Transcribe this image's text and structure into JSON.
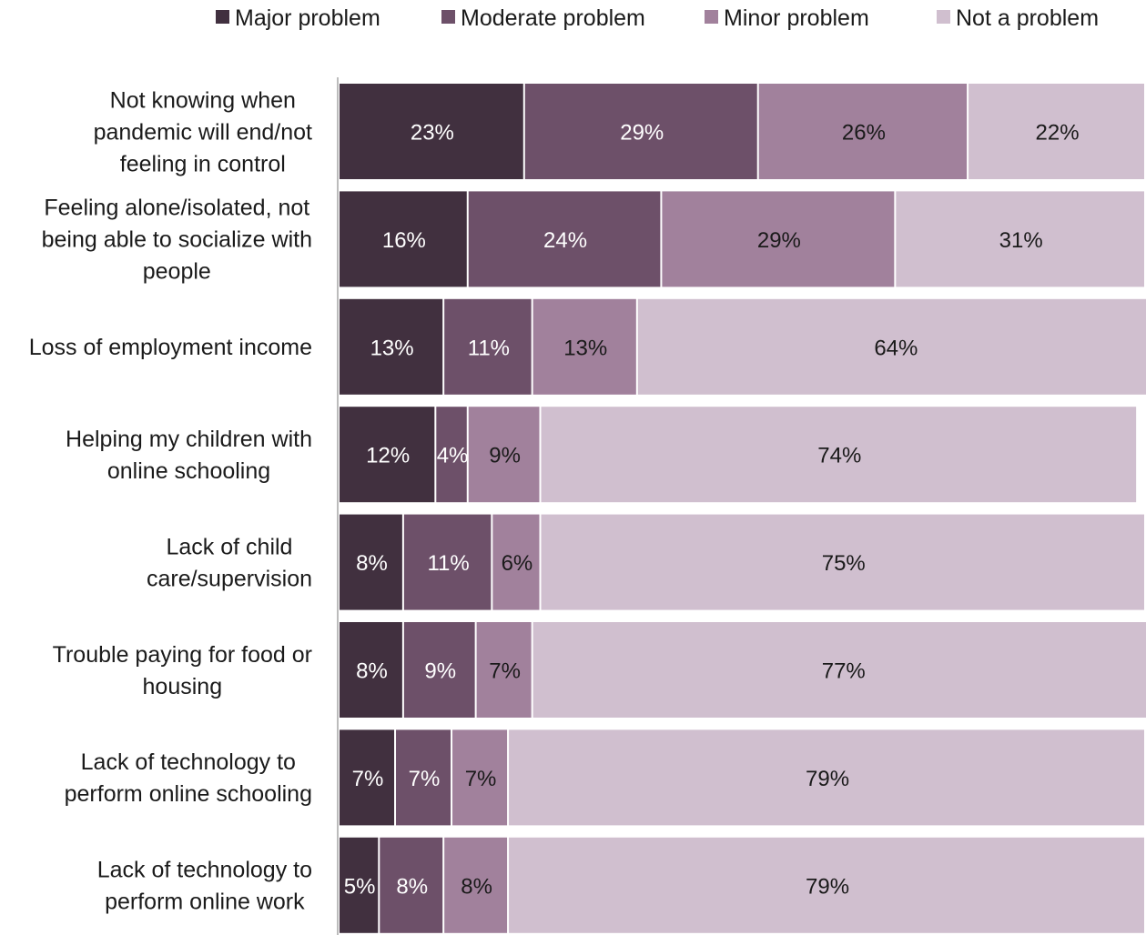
{
  "chart_data": {
    "type": "bar",
    "orientation": "horizontal",
    "stacked": true,
    "value_unit": "%",
    "xlim": [
      0,
      100
    ],
    "grid": false,
    "legend_position": "top-right",
    "categories": [
      "Not knowing when pandemic will end/not feeling in control",
      "Feeling alone/isolated, not being able to socialize with people",
      "Loss of employment income",
      "Helping my children with online schooling",
      "Lack of child care/supervision",
      "Trouble paying for food or housing",
      "Lack of technology to perform online schooling",
      "Lack of technology to perform online work"
    ],
    "category_lines": [
      [
        "Not knowing when",
        "pandemic will end/not",
        "feeling in control"
      ],
      [
        "Feeling alone/isolated, not",
        "being able to socialize with",
        "people"
      ],
      [
        "Loss of employment income"
      ],
      [
        "Helping my children with",
        "online schooling"
      ],
      [
        "Lack of child",
        "care/supervision"
      ],
      [
        "Trouble paying for food or",
        "housing"
      ],
      [
        "Lack of technology to",
        "perform online schooling"
      ],
      [
        "Lack of technology to",
        "perform online work"
      ]
    ],
    "series": [
      {
        "name": "Major problem",
        "color": "#41303f",
        "label_color": "#ffffff",
        "values": [
          23,
          16,
          13,
          12,
          8,
          8,
          7,
          5
        ]
      },
      {
        "name": "Moderate problem",
        "color": "#6d5069",
        "label_color": "#ffffff",
        "values": [
          29,
          24,
          11,
          4,
          11,
          9,
          7,
          8
        ]
      },
      {
        "name": "Minor problem",
        "color": "#a1819c",
        "label_color": "#1a1a1a",
        "values": [
          26,
          29,
          13,
          9,
          6,
          7,
          7,
          8
        ]
      },
      {
        "name": "Not a problem",
        "color": "#d0bfcf",
        "label_color": "#1a1a1a",
        "values": [
          22,
          31,
          64,
          74,
          75,
          77,
          79,
          79
        ]
      }
    ]
  }
}
